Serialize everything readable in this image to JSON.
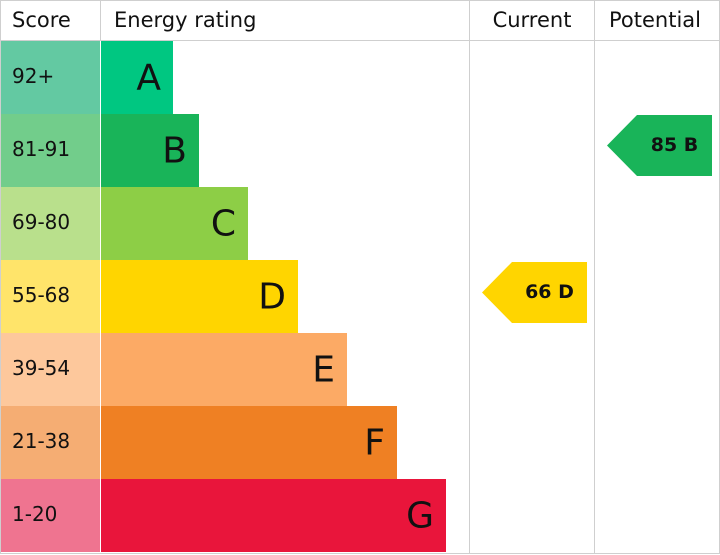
{
  "header": {
    "score": "Score",
    "rating": "Energy rating",
    "current": "Current",
    "potential": "Potential"
  },
  "bands": [
    {
      "score": "92+",
      "letter": "A",
      "color": "#00c781",
      "score_color": "#63c9a2"
    },
    {
      "score": "81-91",
      "letter": "B",
      "color": "#19b459",
      "score_color": "#72cd8b"
    },
    {
      "score": "69-80",
      "letter": "C",
      "color": "#8dce46",
      "score_color": "#b9e08c"
    },
    {
      "score": "55-68",
      "letter": "D",
      "color": "#ffd500",
      "score_color": "#ffe46a"
    },
    {
      "score": "39-54",
      "letter": "E",
      "color": "#fcaa65",
      "score_color": "#fdc89c"
    },
    {
      "score": "21-38",
      "letter": "F",
      "color": "#ef8023",
      "score_color": "#f5ad73"
    },
    {
      "score": "1-20",
      "letter": "G",
      "color": "#e9153b",
      "score_color": "#ef7490"
    }
  ],
  "current": {
    "label": "66 D",
    "color": "#ffd500"
  },
  "potential": {
    "label": "85 B",
    "color": "#19b459"
  }
}
